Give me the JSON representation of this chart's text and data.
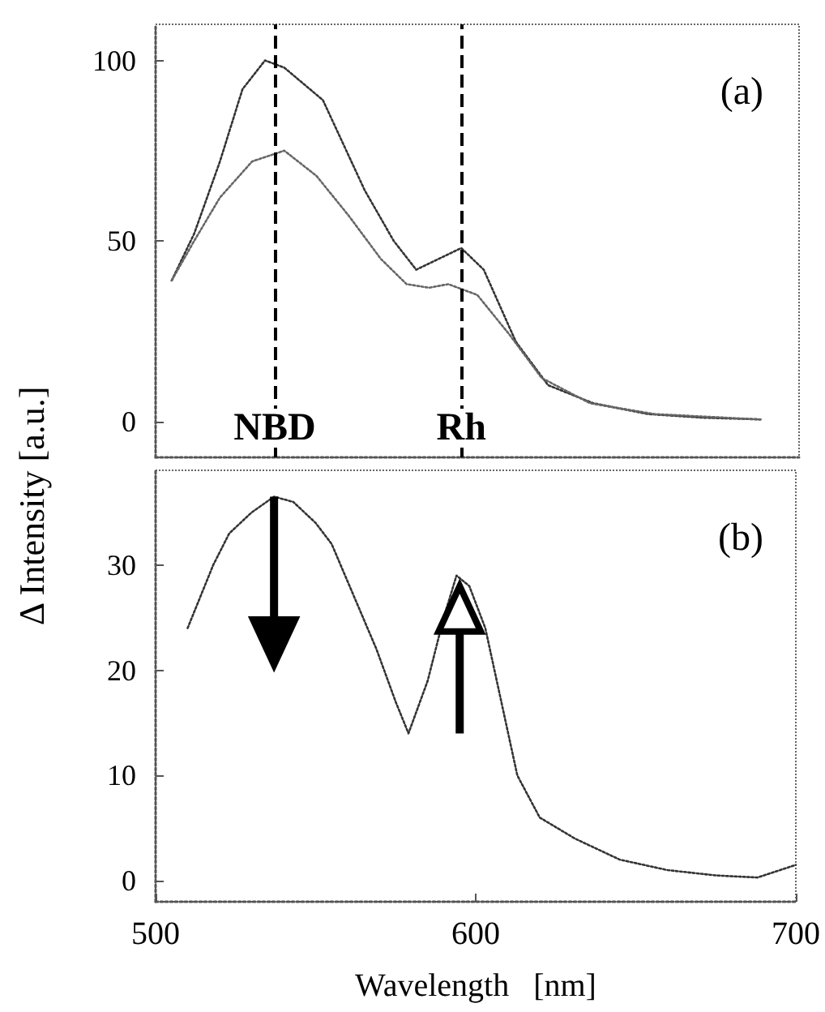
{
  "chart_data": [
    {
      "type": "line",
      "ylabel": "Δ Intensity   [a.u.]",
      "annotations": [
        "(a)"
      ],
      "tick_labels": "y",
      "xlim": [
        500,
        700
      ],
      "ylim": [
        -10,
        110
      ],
      "yticks": [
        0,
        50,
        100
      ],
      "marker": "none",
      "line_style": "dotted",
      "series": [
        {
          "color": "#333333",
          "x": [
            505,
            512,
            520,
            527,
            534,
            540,
            552,
            565,
            574,
            581,
            588,
            595,
            602,
            612,
            622,
            636,
            653,
            670,
            688
          ],
          "values": [
            39,
            52,
            72,
            92,
            100,
            98,
            89,
            64,
            50,
            42,
            45,
            48,
            42,
            22,
            10,
            5,
            2,
            1,
            0.5
          ]
        },
        {
          "color": "#666666",
          "x": [
            505,
            512,
            520,
            530,
            540,
            550,
            560,
            570,
            578,
            585,
            591,
            600,
            610,
            620,
            635,
            655,
            688
          ],
          "values": [
            39,
            50,
            62,
            72,
            75,
            68,
            57,
            45,
            38,
            37,
            38,
            35,
            24,
            12,
            5,
            2,
            0.5
          ]
        }
      ],
      "ref_lines": [
        {
          "axis": "x",
          "value": 537,
          "label": "NBD",
          "line_style": "dashed",
          "color": "#000000"
        },
        {
          "axis": "x",
          "value": 595,
          "label": "Rh",
          "line_style": "dashed",
          "color": "#000000"
        }
      ]
    },
    {
      "type": "line",
      "xlabel": "Wavelength   [nm]",
      "annotations": [
        "(b)"
      ],
      "xlim": [
        500,
        700
      ],
      "xticks": [
        500,
        600,
        700
      ],
      "ylim": [
        -2,
        39
      ],
      "yticks": [
        0,
        10,
        20,
        30
      ],
      "marker": "none",
      "line_style": "dotted",
      "series": [
        {
          "color": "#333333",
          "x": [
            510,
            518,
            523,
            530,
            537,
            543,
            550,
            555,
            562,
            569,
            575,
            579,
            585,
            590,
            594,
            598,
            603,
            608,
            613,
            620,
            631,
            645,
            660,
            675,
            688,
            700
          ],
          "values": [
            24,
            30,
            33,
            35,
            36.5,
            36,
            34,
            32,
            27,
            22,
            17,
            14,
            19,
            25,
            29,
            28,
            24,
            17,
            10,
            6,
            4,
            2,
            1,
            0.5,
            0.3,
            1.5
          ]
        }
      ]
    }
  ]
}
